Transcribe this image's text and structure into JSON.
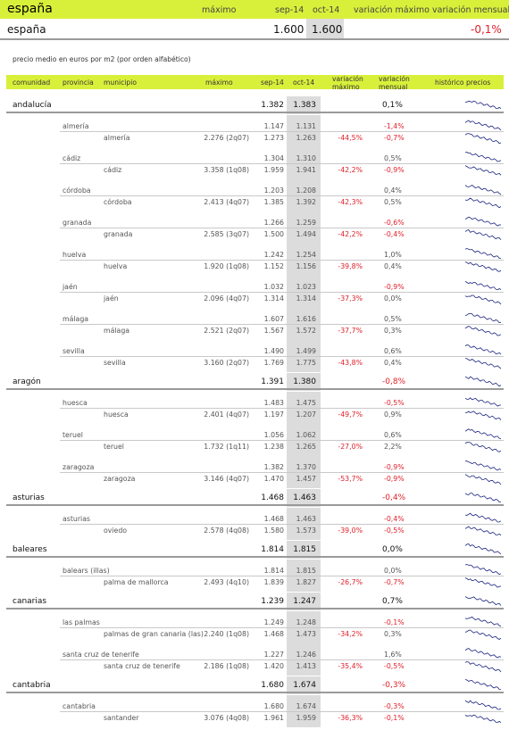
{
  "top": {
    "title": "españa",
    "col_max": "máximo",
    "col_sep": "sep-14",
    "col_oct": "oct-14",
    "col_varmax": "variación máximo",
    "col_varmens": "variación mensual"
  },
  "spain": {
    "name": "españa",
    "sep": "1.600",
    "oct": "1.600",
    "varmens": "-0,1%"
  },
  "caption": "precio medio en euros por m2 (por orden alfabético)",
  "columns": {
    "comunidad": "comunidad",
    "provincia": "provincia",
    "municipio": "municipio",
    "maximo": "máximo",
    "sep": "sep-14",
    "oct": "oct-14",
    "varmax": "variación máximo",
    "varmens": "variación mensual",
    "hist": "histórico precios"
  },
  "regions": [
    {
      "name": "andalucía",
      "sep": "1.382",
      "oct": "1.383",
      "var": "0,1%",
      "provinces": [
        {
          "name": "almería",
          "sep": "1.147",
          "oct": "1.131",
          "var": "-1,4%",
          "muni": "almería",
          "max": "2.276 (2q07)",
          "msep": "1.273",
          "moct": "1.263",
          "mvm": "-44,5%",
          "mvar": "-0,7%"
        },
        {
          "name": "cádiz",
          "sep": "1.304",
          "oct": "1.310",
          "var": "0,5%",
          "muni": "cádiz",
          "max": "3.358 (1q08)",
          "msep": "1.959",
          "moct": "1.941",
          "mvm": "-42,2%",
          "mvar": "-0,9%"
        },
        {
          "name": "córdoba",
          "sep": "1.203",
          "oct": "1.208",
          "var": "0,4%",
          "muni": "córdoba",
          "max": "2.413 (4q07)",
          "msep": "1.385",
          "moct": "1.392",
          "mvm": "-42,3%",
          "mvar": "0,5%"
        },
        {
          "name": "granada",
          "sep": "1.266",
          "oct": "1.259",
          "var": "-0,6%",
          "muni": "granada",
          "max": "2.585 (3q07)",
          "msep": "1.500",
          "moct": "1.494",
          "mvm": "-42,2%",
          "mvar": "-0,4%"
        },
        {
          "name": "huelva",
          "sep": "1.242",
          "oct": "1.254",
          "var": "1,0%",
          "muni": "huelva",
          "max": "1.920 (1q08)",
          "msep": "1.152",
          "moct": "1.156",
          "mvm": "-39,8%",
          "mvar": "0,4%"
        },
        {
          "name": "jaén",
          "sep": "1.032",
          "oct": "1.023",
          "var": "-0,9%",
          "muni": "jaén",
          "max": "2.096 (4q07)",
          "msep": "1.314",
          "moct": "1.314",
          "mvm": "-37,3%",
          "mvar": "0,0%"
        },
        {
          "name": "málaga",
          "sep": "1.607",
          "oct": "1.616",
          "var": "0,5%",
          "muni": "málaga",
          "max": "2.521 (2q07)",
          "msep": "1.567",
          "moct": "1.572",
          "mvm": "-37,7%",
          "mvar": "0,3%"
        },
        {
          "name": "sevilla",
          "sep": "1.490",
          "oct": "1.499",
          "var": "0,6%",
          "muni": "sevilla",
          "max": "3.160 (2q07)",
          "msep": "1.769",
          "moct": "1.775",
          "mvm": "-43,8%",
          "mvar": "0,4%"
        }
      ]
    },
    {
      "name": "aragón",
      "sep": "1.391",
      "oct": "1.380",
      "var": "-0,8%",
      "provinces": [
        {
          "name": "huesca",
          "sep": "1.483",
          "oct": "1.475",
          "var": "-0,5%",
          "muni": "huesca",
          "max": "2.401 (4q07)",
          "msep": "1.197",
          "moct": "1.207",
          "mvm": "-49,7%",
          "mvar": "0,9%"
        },
        {
          "name": "teruel",
          "sep": "1.056",
          "oct": "1.062",
          "var": "0,6%",
          "muni": "teruel",
          "max": "1.732 (1q11)",
          "msep": "1.238",
          "moct": "1.265",
          "mvm": "-27,0%",
          "mvar": "2,2%"
        },
        {
          "name": "zaragoza",
          "sep": "1.382",
          "oct": "1.370",
          "var": "-0,9%",
          "muni": "zaragoza",
          "max": "3.146 (4q07)",
          "msep": "1.470",
          "moct": "1.457",
          "mvm": "-53,7%",
          "mvar": "-0,9%"
        }
      ]
    },
    {
      "name": "asturias",
      "sep": "1.468",
      "oct": "1.463",
      "var": "-0,4%",
      "provinces": [
        {
          "name": "asturias",
          "sep": "1.468",
          "oct": "1.463",
          "var": "-0,4%",
          "muni": "oviedo",
          "max": "2.578 (4q08)",
          "msep": "1.580",
          "moct": "1.573",
          "mvm": "-39,0%",
          "mvar": "-0,5%"
        }
      ]
    },
    {
      "name": "baleares",
      "sep": "1.814",
      "oct": "1.815",
      "var": "0,0%",
      "provinces": [
        {
          "name": "balears (illas)",
          "sep": "1.814",
          "oct": "1.815",
          "var": "0,0%",
          "muni": "palma de mallorca",
          "max": "2.493 (4q10)",
          "msep": "1.839",
          "moct": "1.827",
          "mvm": "-26,7%",
          "mvar": "-0,7%"
        }
      ]
    },
    {
      "name": "canarias",
      "sep": "1.239",
      "oct": "1.247",
      "var": "0,7%",
      "provinces": [
        {
          "name": "las palmas",
          "sep": "1.249",
          "oct": "1.248",
          "var": "-0,1%",
          "muni": "palmas de gran canaria (las)",
          "max": "2.240 (1q08)",
          "msep": "1.468",
          "moct": "1.473",
          "mvm": "-34,2%",
          "mvar": "0,3%"
        },
        {
          "name": "santa cruz de tenerife",
          "sep": "1.227",
          "oct": "1.246",
          "var": "1,6%",
          "muni": "santa cruz de tenerife",
          "max": "2.186 (1q08)",
          "msep": "1.420",
          "moct": "1.413",
          "mvm": "-35,4%",
          "mvar": "-0,5%"
        }
      ]
    },
    {
      "name": "cantabria",
      "sep": "1.680",
      "oct": "1.674",
      "var": "-0,3%",
      "provinces": [
        {
          "name": "cantabria",
          "sep": "1.680",
          "oct": "1.674",
          "var": "-0,3%",
          "muni": "santander",
          "max": "3.076 (4q08)",
          "msep": "1.961",
          "moct": "1.959",
          "mvm": "-36,3%",
          "mvar": "-0,1%"
        }
      ]
    }
  ],
  "colors": {
    "accent": "#d9f03a",
    "negative": "#e0202a",
    "spark": "#1a237e",
    "shade": "#dcdcdc"
  }
}
